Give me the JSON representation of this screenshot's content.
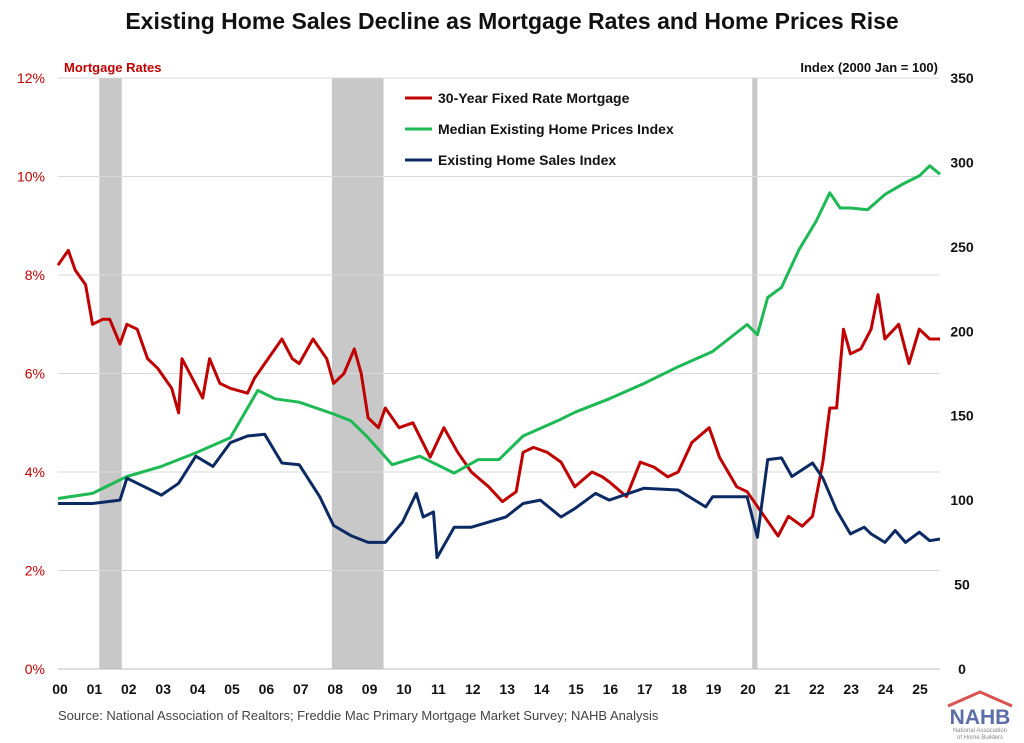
{
  "chart_data": {
    "type": "line",
    "title": "Existing Home Sales Decline as Mortgage Rates and Home Prices Rise",
    "left_axis": {
      "label": "Mortgage Rates",
      "range": [
        0,
        12
      ],
      "ticks": [
        "0%",
        "2%",
        "4%",
        "6%",
        "8%",
        "10%",
        "12%"
      ],
      "color": "#c00000"
    },
    "right_axis": {
      "label": "Index (2000 Jan = 100)",
      "range": [
        0,
        350
      ],
      "ticks": [
        "0",
        "50",
        "100",
        "150",
        "200",
        "250",
        "300",
        "350"
      ]
    },
    "x_axis": {
      "range": [
        2000,
        2025.6
      ],
      "ticks": [
        "00",
        "01",
        "02",
        "03",
        "04",
        "05",
        "06",
        "07",
        "08",
        "09",
        "10",
        "11",
        "12",
        "13",
        "14",
        "15",
        "16",
        "17",
        "18",
        "19",
        "20",
        "21",
        "22",
        "23",
        "24",
        "25"
      ]
    },
    "grid": true,
    "legend_position": "top-center",
    "recessions": [
      [
        2001.2,
        2001.85
      ],
      [
        2007.95,
        2009.45
      ],
      [
        2020.15,
        2020.3
      ]
    ],
    "series": [
      {
        "name": "30-Year Fixed Rate Mortgage",
        "axis": "left",
        "color": "#c00000",
        "points": [
          [
            2000,
            8.2
          ],
          [
            2000.1,
            8.3
          ],
          [
            2000.3,
            8.5
          ],
          [
            2000.5,
            8.1
          ],
          [
            2000.8,
            7.8
          ],
          [
            2001.0,
            7.0
          ],
          [
            2001.3,
            7.1
          ],
          [
            2001.5,
            7.1
          ],
          [
            2001.8,
            6.6
          ],
          [
            2002.0,
            7.0
          ],
          [
            2002.3,
            6.9
          ],
          [
            2002.6,
            6.3
          ],
          [
            2002.9,
            6.1
          ],
          [
            2003.3,
            5.7
          ],
          [
            2003.5,
            5.2
          ],
          [
            2003.6,
            6.3
          ],
          [
            2003.9,
            5.9
          ],
          [
            2004.2,
            5.5
          ],
          [
            2004.4,
            6.3
          ],
          [
            2004.7,
            5.8
          ],
          [
            2005.0,
            5.7
          ],
          [
            2005.5,
            5.6
          ],
          [
            2005.7,
            5.9
          ],
          [
            2006.0,
            6.2
          ],
          [
            2006.5,
            6.7
          ],
          [
            2006.8,
            6.3
          ],
          [
            2007.0,
            6.2
          ],
          [
            2007.4,
            6.7
          ],
          [
            2007.8,
            6.3
          ],
          [
            2008.0,
            5.8
          ],
          [
            2008.3,
            6.0
          ],
          [
            2008.6,
            6.5
          ],
          [
            2008.8,
            6.0
          ],
          [
            2009.0,
            5.1
          ],
          [
            2009.3,
            4.9
          ],
          [
            2009.5,
            5.3
          ],
          [
            2009.9,
            4.9
          ],
          [
            2010.3,
            5.0
          ],
          [
            2010.8,
            4.3
          ],
          [
            2011.2,
            4.9
          ],
          [
            2011.6,
            4.4
          ],
          [
            2012.0,
            4.0
          ],
          [
            2012.5,
            3.7
          ],
          [
            2012.9,
            3.4
          ],
          [
            2013.3,
            3.6
          ],
          [
            2013.5,
            4.4
          ],
          [
            2013.8,
            4.5
          ],
          [
            2014.2,
            4.4
          ],
          [
            2014.6,
            4.2
          ],
          [
            2015.0,
            3.7
          ],
          [
            2015.5,
            4.0
          ],
          [
            2015.8,
            3.9
          ],
          [
            2016.0,
            3.8
          ],
          [
            2016.5,
            3.5
          ],
          [
            2016.9,
            4.2
          ],
          [
            2017.3,
            4.1
          ],
          [
            2017.7,
            3.9
          ],
          [
            2018.0,
            4.0
          ],
          [
            2018.4,
            4.6
          ],
          [
            2018.9,
            4.9
          ],
          [
            2019.2,
            4.3
          ],
          [
            2019.7,
            3.7
          ],
          [
            2020.0,
            3.6
          ],
          [
            2020.5,
            3.1
          ],
          [
            2020.9,
            2.7
          ],
          [
            2021.2,
            3.1
          ],
          [
            2021.6,
            2.9
          ],
          [
            2021.9,
            3.1
          ],
          [
            2022.2,
            4.2
          ],
          [
            2022.4,
            5.3
          ],
          [
            2022.6,
            5.3
          ],
          [
            2022.8,
            6.9
          ],
          [
            2023.0,
            6.4
          ],
          [
            2023.3,
            6.5
          ],
          [
            2023.6,
            6.9
          ],
          [
            2023.8,
            7.6
          ],
          [
            2024.0,
            6.7
          ],
          [
            2024.4,
            7.0
          ],
          [
            2024.7,
            6.2
          ],
          [
            2025.0,
            6.9
          ],
          [
            2025.3,
            6.7
          ],
          [
            2025.6,
            6.7
          ]
        ]
      },
      {
        "name": "Median Existing Home Prices Index",
        "axis": "right",
        "color": "#1db954",
        "points": [
          [
            2000,
            101
          ],
          [
            2001,
            104
          ],
          [
            2002,
            114
          ],
          [
            2003,
            120
          ],
          [
            2004,
            128
          ],
          [
            2005,
            137
          ],
          [
            2005.8,
            165
          ],
          [
            2006.3,
            160
          ],
          [
            2007,
            158
          ],
          [
            2008,
            151
          ],
          [
            2008.5,
            147
          ],
          [
            2009,
            137
          ],
          [
            2009.7,
            121
          ],
          [
            2010.5,
            126
          ],
          [
            2011.5,
            116
          ],
          [
            2012.2,
            124
          ],
          [
            2012.8,
            124
          ],
          [
            2013.5,
            138
          ],
          [
            2014.5,
            147
          ],
          [
            2015,
            152
          ],
          [
            2016,
            160
          ],
          [
            2017,
            169
          ],
          [
            2018,
            179
          ],
          [
            2019,
            188
          ],
          [
            2020,
            204
          ],
          [
            2020.3,
            198
          ],
          [
            2020.6,
            220
          ],
          [
            2021,
            226
          ],
          [
            2021.5,
            248
          ],
          [
            2022,
            265
          ],
          [
            2022.4,
            282
          ],
          [
            2022.7,
            273
          ],
          [
            2023,
            273
          ],
          [
            2023.5,
            272
          ],
          [
            2024,
            281
          ],
          [
            2024.5,
            287
          ],
          [
            2025.0,
            292
          ],
          [
            2025.3,
            298
          ],
          [
            2025.6,
            293
          ]
        ]
      },
      {
        "name": "Existing Home Sales Index",
        "axis": "right",
        "color": "#0b2a63",
        "points": [
          [
            2000,
            98
          ],
          [
            2001,
            98
          ],
          [
            2001.8,
            100
          ],
          [
            2002,
            113
          ],
          [
            2003,
            103
          ],
          [
            2003.5,
            110
          ],
          [
            2004,
            126
          ],
          [
            2004.5,
            120
          ],
          [
            2005,
            134
          ],
          [
            2005.5,
            138
          ],
          [
            2006,
            139
          ],
          [
            2006.5,
            122
          ],
          [
            2007,
            121
          ],
          [
            2007.6,
            102
          ],
          [
            2008,
            85
          ],
          [
            2008.5,
            79
          ],
          [
            2009,
            75
          ],
          [
            2009.5,
            75
          ],
          [
            2010,
            87
          ],
          [
            2010.4,
            104
          ],
          [
            2010.6,
            90
          ],
          [
            2010.9,
            93
          ],
          [
            2011.0,
            66
          ],
          [
            2011.5,
            84
          ],
          [
            2012,
            84
          ],
          [
            2012.5,
            87
          ],
          [
            2013,
            90
          ],
          [
            2013.5,
            98
          ],
          [
            2014,
            100
          ],
          [
            2014.6,
            90
          ],
          [
            2015,
            95
          ],
          [
            2015.6,
            104
          ],
          [
            2016,
            100
          ],
          [
            2017,
            107
          ],
          [
            2018,
            106
          ],
          [
            2018.8,
            96
          ],
          [
            2019,
            102
          ],
          [
            2020,
            102
          ],
          [
            2020.3,
            78
          ],
          [
            2020.6,
            124
          ],
          [
            2021,
            125
          ],
          [
            2021.3,
            114
          ],
          [
            2021.9,
            122
          ],
          [
            2022.2,
            113
          ],
          [
            2022.6,
            94
          ],
          [
            2023,
            80
          ],
          [
            2023.4,
            84
          ],
          [
            2023.6,
            80
          ],
          [
            2024,
            75
          ],
          [
            2024.3,
            82
          ],
          [
            2024.6,
            75
          ],
          [
            2025,
            81
          ],
          [
            2025.3,
            76
          ],
          [
            2025.6,
            77
          ]
        ]
      }
    ],
    "source": "Source: National Association of Realtors; Freddie Mac Primary Mortgage Market Survey; NAHB Analysis"
  },
  "logo": {
    "text": "NAHB",
    "subtitle": "National Association of Home Builders"
  }
}
